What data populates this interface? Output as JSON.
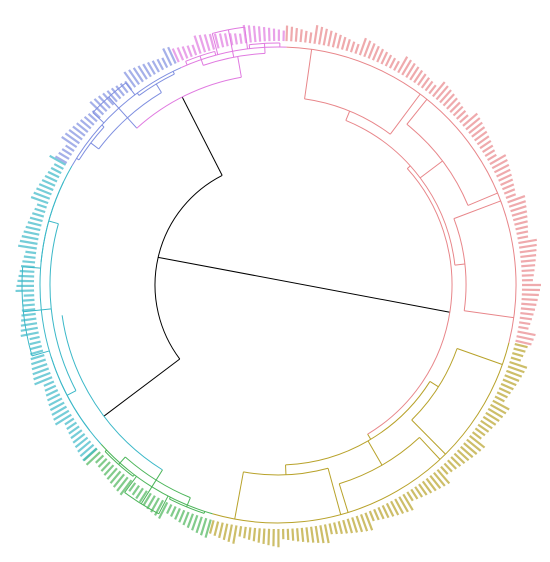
{
  "clusters": [
    {
      "color": "#e8868a"
    },
    {
      "color": "#b8a22a"
    },
    {
      "color": "#4cb55a"
    },
    {
      "color": "#3bb8c8"
    },
    {
      "color": "#7f8fe0"
    },
    {
      "color": "#e07ae0"
    }
  ],
  "root_color": "#000000"
}
